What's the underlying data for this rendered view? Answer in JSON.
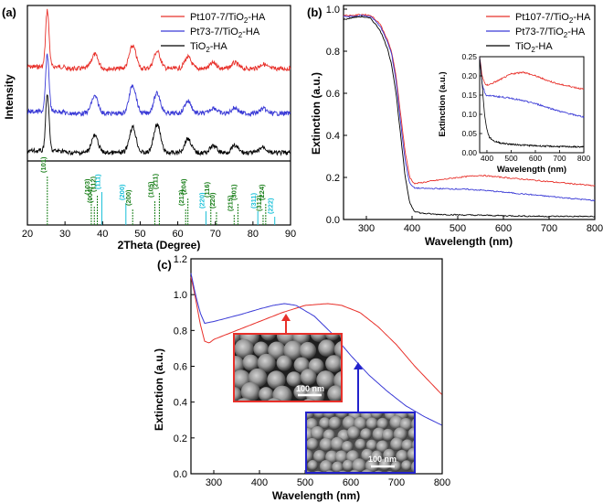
{
  "panels": [
    {
      "id": "a",
      "label": "(a)"
    },
    {
      "id": "b",
      "label": "(b)"
    },
    {
      "id": "c",
      "label": "(c)"
    }
  ],
  "colors": {
    "pt107": "#e8302a",
    "pt73": "#3a3ad6",
    "tio2": "#000000",
    "ref_green": "#1a7f1a",
    "ref_cyan": "#19c0d8"
  },
  "chart_data": [
    {
      "panel": "a",
      "type": "line",
      "title": "",
      "xlabel": "2Theta (Degree)",
      "ylabel": "Intensity",
      "xlim": [
        20,
        90
      ],
      "xticks": [
        "20",
        "30",
        "40",
        "50",
        "60",
        "70",
        "80",
        "90"
      ],
      "series": [
        {
          "name": "Pt107-7/TiO2-HA",
          "legend_main": "Pt107-7/TiO",
          "legend_sub": "2",
          "legend_tail": "-HA",
          "offset": 2,
          "peaks": [
            [
              25.3,
              1.0
            ],
            [
              37.9,
              0.25
            ],
            [
              48.0,
              0.4
            ],
            [
              54.5,
              0.3
            ],
            [
              62.7,
              0.2
            ],
            [
              69.5,
              0.1
            ],
            [
              75.2,
              0.1
            ],
            [
              82.7,
              0.08
            ]
          ]
        },
        {
          "name": "Pt73-7/TiO2-HA",
          "legend_main": "Pt73-7/TiO",
          "legend_sub": "2",
          "legend_tail": "-HA",
          "offset": 1,
          "peaks": [
            [
              25.3,
              1.0
            ],
            [
              37.9,
              0.3
            ],
            [
              48.0,
              0.5
            ],
            [
              54.5,
              0.35
            ],
            [
              62.7,
              0.22
            ],
            [
              69.5,
              0.1
            ],
            [
              75.2,
              0.1
            ],
            [
              82.7,
              0.08
            ]
          ]
        },
        {
          "name": "TiO2-HA",
          "legend_main": "TiO",
          "legend_sub": "2",
          "legend_tail": "-HA",
          "offset": 0,
          "peaks": [
            [
              25.3,
              1.0
            ],
            [
              37.9,
              0.3
            ],
            [
              48.0,
              0.45
            ],
            [
              54.5,
              0.5
            ],
            [
              62.7,
              0.25
            ],
            [
              69.5,
              0.12
            ],
            [
              75.2,
              0.12
            ],
            [
              82.7,
              0.1
            ]
          ]
        }
      ],
      "reference_lines": [
        {
          "x": 25.3,
          "label": "(101)",
          "color": "green",
          "h": 0.9
        },
        {
          "x": 37.0,
          "label": "(103)",
          "color": "green",
          "h": 0.5
        },
        {
          "x": 37.8,
          "label": "(004)",
          "color": "green",
          "h": 0.35
        },
        {
          "x": 38.6,
          "label": "(112)",
          "color": "green",
          "h": 0.55
        },
        {
          "x": 39.8,
          "label": "(111)",
          "color": "cyan",
          "h": 0.6
        },
        {
          "x": 46.2,
          "label": "(200)",
          "color": "cyan",
          "h": 0.4
        },
        {
          "x": 48.0,
          "label": "(200)",
          "color": "green",
          "h": 0.3
        },
        {
          "x": 53.9,
          "label": "(105)",
          "color": "green",
          "h": 0.45
        },
        {
          "x": 55.1,
          "label": "(211)",
          "color": "green",
          "h": 0.6
        },
        {
          "x": 62.1,
          "label": "(213)",
          "color": "green",
          "h": 0.3
        },
        {
          "x": 62.7,
          "label": "(204)",
          "color": "green",
          "h": 0.5
        },
        {
          "x": 67.5,
          "label": "(220)",
          "color": "cyan",
          "h": 0.25
        },
        {
          "x": 68.8,
          "label": "(116)",
          "color": "green",
          "h": 0.45
        },
        {
          "x": 70.3,
          "label": "(220)",
          "color": "green",
          "h": 0.25
        },
        {
          "x": 75.0,
          "label": "(215)",
          "color": "green",
          "h": 0.2
        },
        {
          "x": 76.0,
          "label": "(301)",
          "color": "green",
          "h": 0.4
        },
        {
          "x": 81.3,
          "label": "(311)",
          "color": "cyan",
          "h": 0.25
        },
        {
          "x": 82.7,
          "label": "(312)",
          "color": "green",
          "h": 0.2
        },
        {
          "x": 83.4,
          "label": "(224)",
          "color": "green",
          "h": 0.4
        },
        {
          "x": 85.8,
          "label": "(222)",
          "color": "cyan",
          "h": 0.15
        }
      ]
    },
    {
      "panel": "b",
      "type": "line",
      "title": "",
      "xlabel": "Wavelength (nm)",
      "ylabel": "Extinction (a.u.)",
      "xlim": [
        250,
        800
      ],
      "ylim": [
        0,
        1.0
      ],
      "xticks": [
        "300",
        "400",
        "500",
        "600",
        "700",
        "800"
      ],
      "yticks": [
        "0.0",
        "0.2",
        "0.4",
        "0.6",
        "0.8",
        "1.0"
      ],
      "series": [
        {
          "name": "Pt107-7/TiO2-HA",
          "legend_main": "Pt107-7/TiO",
          "legend_sub": "2",
          "legend_tail": "-HA",
          "x": [
            250,
            270,
            290,
            310,
            330,
            345,
            355,
            365,
            375,
            385,
            395,
            405,
            420,
            450,
            500,
            550,
            600,
            650,
            700,
            750,
            800
          ],
          "y": [
            0.97,
            0.97,
            0.975,
            0.97,
            0.93,
            0.86,
            0.8,
            0.68,
            0.5,
            0.32,
            0.2,
            0.17,
            0.175,
            0.185,
            0.2,
            0.21,
            0.2,
            0.19,
            0.18,
            0.17,
            0.16
          ]
        },
        {
          "name": "Pt73-7/TiO2-HA",
          "legend_main": "Pt73-7/TiO",
          "legend_sub": "2",
          "legend_tail": "-HA",
          "x": [
            250,
            270,
            290,
            310,
            330,
            345,
            355,
            365,
            375,
            385,
            395,
            405,
            420,
            450,
            500,
            550,
            600,
            650,
            700,
            750,
            800
          ],
          "y": [
            0.965,
            0.965,
            0.97,
            0.965,
            0.92,
            0.85,
            0.79,
            0.66,
            0.46,
            0.28,
            0.17,
            0.15,
            0.148,
            0.147,
            0.145,
            0.14,
            0.13,
            0.12,
            0.11,
            0.1,
            0.09
          ]
        },
        {
          "name": "TiO2-HA",
          "legend_main": "TiO",
          "legend_sub": "2",
          "legend_tail": "-HA",
          "x": [
            250,
            270,
            290,
            310,
            330,
            345,
            355,
            365,
            375,
            385,
            395,
            405,
            420,
            450,
            500,
            550,
            600,
            650,
            700,
            750,
            800
          ],
          "y": [
            0.95,
            0.96,
            0.965,
            0.955,
            0.9,
            0.82,
            0.74,
            0.6,
            0.4,
            0.2,
            0.08,
            0.04,
            0.03,
            0.025,
            0.022,
            0.02,
            0.018,
            0.016,
            0.015,
            0.015,
            0.014
          ]
        }
      ],
      "inset": {
        "xlabel": "Wavelength (nm)",
        "ylabel": "Extinction (a.u.)",
        "xlim": [
          370,
          800
        ],
        "ylim": [
          0,
          0.25
        ],
        "xticks": [
          "400",
          "500",
          "600",
          "700",
          "800"
        ],
        "yticks": [
          "0.00",
          "0.05",
          "0.10",
          "0.15",
          "0.20",
          "0.25"
        ]
      }
    },
    {
      "panel": "c",
      "type": "line",
      "title": "",
      "xlabel": "Wavelength (nm)",
      "ylabel": "Extinction (a.u.)",
      "xlim": [
        250,
        800
      ],
      "ylim": [
        0,
        1.2
      ],
      "xticks": [
        "300",
        "400",
        "500",
        "600",
        "700",
        "800"
      ],
      "yticks": [
        "0.0",
        "0.2",
        "0.4",
        "0.6",
        "0.8",
        "1.0",
        "1.2"
      ],
      "series": [
        {
          "name": "Pt107-7/TiO2-HA",
          "x": [
            250,
            260,
            270,
            280,
            290,
            300,
            330,
            360,
            400,
            450,
            500,
            550,
            580,
            620,
            660,
            700,
            740,
            770,
            800
          ],
          "y": [
            1.1,
            0.98,
            0.84,
            0.74,
            0.73,
            0.75,
            0.78,
            0.81,
            0.85,
            0.9,
            0.94,
            0.95,
            0.94,
            0.9,
            0.82,
            0.72,
            0.6,
            0.52,
            0.44
          ]
        },
        {
          "name": "Pt73-7/TiO2-HA",
          "x": [
            250,
            260,
            270,
            280,
            290,
            300,
            330,
            360,
            400,
            430,
            455,
            480,
            520,
            560,
            600,
            640,
            680,
            720,
            760,
            800
          ],
          "y": [
            1.12,
            1.0,
            0.9,
            0.84,
            0.845,
            0.85,
            0.87,
            0.89,
            0.92,
            0.94,
            0.95,
            0.94,
            0.88,
            0.78,
            0.66,
            0.55,
            0.46,
            0.38,
            0.32,
            0.27
          ]
        }
      ],
      "annotations": {
        "scale_bar_1": "100 nm",
        "scale_bar_2": "100 nm"
      }
    }
  ]
}
